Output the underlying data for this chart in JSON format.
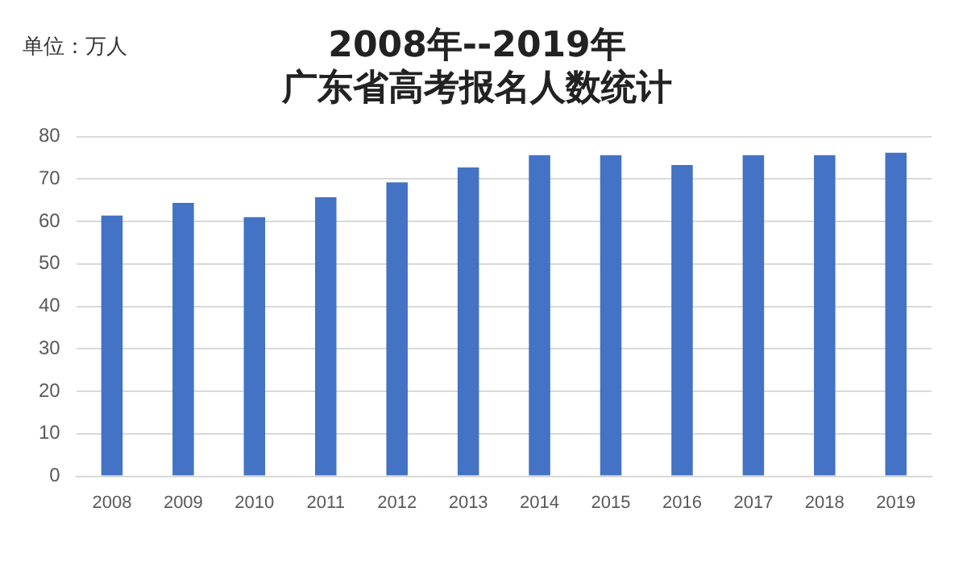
{
  "chart_data": {
    "type": "bar",
    "title": [
      "2008年--2019年",
      "广东省高考报名人数统计"
    ],
    "ylabel": "单位：万人",
    "categories": [
      "2008",
      "2009",
      "2010",
      "2011",
      "2012",
      "2013",
      "2014",
      "2015",
      "2016",
      "2017",
      "2018",
      "2019"
    ],
    "values": [
      61.4,
      64.4,
      61,
      65.7,
      69.2,
      72.7,
      75.6,
      75.6,
      73.3,
      75.6,
      75.6,
      76.2
    ],
    "color": "#4472c4",
    "ylim": [
      0,
      80
    ],
    "yticks": [
      0,
      10,
      20,
      30,
      40,
      50,
      60,
      70,
      80
    ],
    "grid": "y"
  }
}
